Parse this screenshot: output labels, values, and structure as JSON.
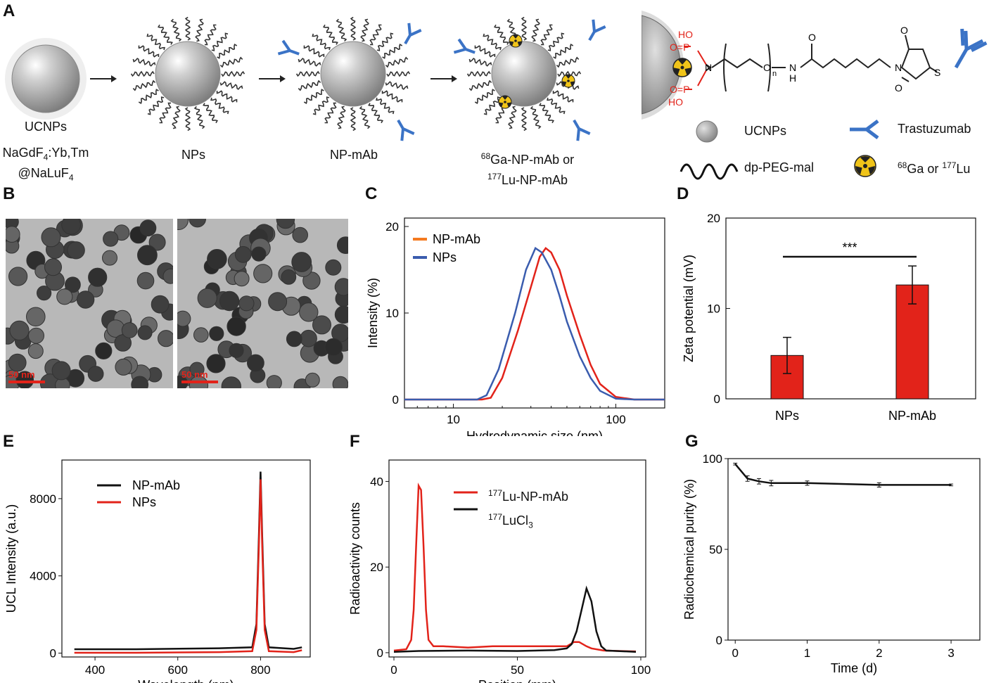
{
  "panels": {
    "A": "A",
    "B": "B",
    "C": "C",
    "D": "D",
    "E": "E",
    "F": "F",
    "G": "G"
  },
  "schematic": {
    "ucnps_label": "UCNPs",
    "composition": "NaGdF4:Yb,Tm @NaLuF4",
    "nps_label": "NPs",
    "npmab_label": "NP-mAb",
    "radio_label_1": "68Ga-NP-mAb or",
    "radio_label_2": "177Lu-NP-mAb",
    "chem": {
      "ho1": "HO",
      "op1": "O=P",
      "ho2": "O=P",
      "ho3": "HO",
      "n": "N",
      "o": "O",
      "n_sub": "n",
      "h": "H",
      "n2": "N",
      "o_top": "O",
      "o_bottom": "O",
      "s": "S",
      "o_amide": "O",
      "n_mal": "N"
    },
    "legend": {
      "ucnps": "UCNPs",
      "trastuzumab": "Trastuzumab",
      "peg": "dp-PEG-mal",
      "isotopes": "68Ga or 177Lu"
    }
  },
  "tem": {
    "scale1": "50 nm",
    "scale2": "50 nm"
  },
  "colors": {
    "red": "#e2231a",
    "blue": "#3a5cae",
    "orange": "#f47a20",
    "black": "#111111",
    "ab_blue": "#3b73c6",
    "nuclear_yellow": "#f0c419"
  },
  "chart_data": [
    {
      "id": "C",
      "type": "line",
      "xlabel": "Hydrodynamic size (nm)",
      "ylabel": "Intensity (%)",
      "xscale": "log",
      "xlim": [
        5,
        200
      ],
      "ylim": [
        0,
        20
      ],
      "xticks": [
        10,
        100
      ],
      "xtick_labels": [
        "10",
        "100"
      ],
      "yticks": [
        0,
        10,
        20
      ],
      "ytick_labels": [
        "0",
        "10",
        "20"
      ],
      "legend": [
        "NP-mAb",
        "NPs"
      ],
      "series": [
        {
          "name": "NP-mAb",
          "color": "#e2231a",
          "x": [
            5,
            15,
            17,
            20,
            25,
            30,
            34,
            37,
            40,
            45,
            50,
            60,
            70,
            80,
            100,
            130,
            200
          ],
          "y": [
            0,
            0,
            0.2,
            2.5,
            8,
            13,
            16.5,
            17.5,
            17,
            15,
            12,
            7.5,
            4,
            1.8,
            0.3,
            0,
            0
          ]
        },
        {
          "name": "NPs",
          "color": "#3a5cae",
          "x": [
            5,
            14,
            16,
            19,
            24,
            28,
            32,
            35,
            40,
            45,
            50,
            60,
            70,
            80,
            100,
            130,
            200
          ],
          "y": [
            0,
            0,
            0.5,
            3.5,
            10,
            15,
            17.5,
            17,
            15,
            12,
            9,
            5,
            2.5,
            1,
            0.1,
            0,
            0
          ]
        }
      ]
    },
    {
      "id": "D",
      "type": "bar",
      "xlabel": "",
      "ylabel": "Zeta potential (mV)",
      "categories": [
        "NPs",
        "NP-mAb"
      ],
      "values": [
        4.8,
        12.6
      ],
      "errors": [
        2.0,
        2.1
      ],
      "ylim": [
        0,
        20
      ],
      "yticks": [
        0,
        10,
        20
      ],
      "ytick_labels": [
        "0",
        "10",
        "20"
      ],
      "annotation": "***"
    },
    {
      "id": "E",
      "type": "line",
      "xlabel": "Wavelength (nm)",
      "ylabel": "UCL Intensity (a.u.)",
      "xlim": [
        320,
        920
      ],
      "ylim": [
        -200,
        10000
      ],
      "xticks": [
        400,
        600,
        800
      ],
      "xtick_labels": [
        "400",
        "600",
        "800"
      ],
      "yticks": [
        0,
        4000,
        8000
      ],
      "ytick_labels": [
        "0",
        "4000",
        "8000"
      ],
      "legend": [
        "NP-mAb",
        "NPs"
      ],
      "series": [
        {
          "name": "NP-mAb",
          "color": "#111111",
          "x": [
            350,
            500,
            700,
            780,
            790,
            796,
            800,
            804,
            810,
            820,
            880,
            900
          ],
          "y": [
            200,
            200,
            250,
            300,
            1500,
            6000,
            9400,
            6000,
            1500,
            300,
            220,
            300
          ]
        },
        {
          "name": "NPs",
          "color": "#e2231a",
          "x": [
            350,
            500,
            700,
            780,
            790,
            796,
            800,
            804,
            810,
            820,
            880,
            900
          ],
          "y": [
            20,
            20,
            50,
            100,
            1200,
            5500,
            9000,
            5500,
            1200,
            100,
            50,
            150
          ]
        }
      ]
    },
    {
      "id": "F",
      "type": "line",
      "xlabel": "Position (mm)",
      "ylabel": "Radioactivity counts",
      "xlim": [
        -2,
        102
      ],
      "ylim": [
        -1,
        45
      ],
      "xticks": [
        0,
        50,
        100
      ],
      "xtick_labels": [
        "0",
        "50",
        "100"
      ],
      "yticks": [
        0,
        20,
        40
      ],
      "ytick_labels": [
        "0",
        "20",
        "40"
      ],
      "legend": [
        "177Lu-NP-mAb",
        "177LuCl3"
      ],
      "series": [
        {
          "name": "177Lu-NP-mAb",
          "color": "#e2231a",
          "x": [
            0,
            5,
            7,
            8,
            9,
            10,
            11,
            12,
            13,
            14,
            16,
            20,
            30,
            40,
            50,
            60,
            70,
            73,
            75,
            78,
            80,
            85,
            98
          ],
          "y": [
            0.5,
            0.8,
            3,
            10,
            25,
            39,
            38,
            25,
            10,
            3,
            1.5,
            1.5,
            1.2,
            1.5,
            1.5,
            1.5,
            1.5,
            2.5,
            2.5,
            1.5,
            1,
            0.5,
            0.3
          ]
        },
        {
          "name": "177LuCl3",
          "color": "#111111",
          "x": [
            0,
            10,
            30,
            50,
            65,
            70,
            72,
            74,
            76,
            78,
            80,
            82,
            84,
            86,
            90,
            98
          ],
          "y": [
            0.2,
            0.4,
            0.5,
            0.4,
            0.6,
            1,
            2,
            5,
            10,
            15,
            12,
            5,
            1.5,
            0.5,
            0.4,
            0.2
          ]
        }
      ]
    },
    {
      "id": "G",
      "type": "line",
      "xlabel": "Time (d)",
      "ylabel": "Radiochemical purity (%)",
      "xlim": [
        -0.1,
        3.4
      ],
      "ylim": [
        0,
        100
      ],
      "xticks": [
        0,
        1,
        2,
        3
      ],
      "xtick_labels": [
        "0",
        "1",
        "2",
        "3"
      ],
      "yticks": [
        0,
        50,
        100
      ],
      "ytick_labels": [
        "0",
        "50",
        "100"
      ],
      "series": [
        {
          "name": "purity",
          "color": "#111111",
          "x": [
            0,
            0.17,
            0.33,
            0.5,
            1,
            2,
            3
          ],
          "y": [
            97,
            89,
            87.5,
            86.5,
            86.5,
            85.5,
            85.5
          ],
          "errors": [
            0.5,
            1.5,
            1.5,
            1.5,
            1.2,
            1.2,
            0.5
          ]
        }
      ]
    }
  ]
}
